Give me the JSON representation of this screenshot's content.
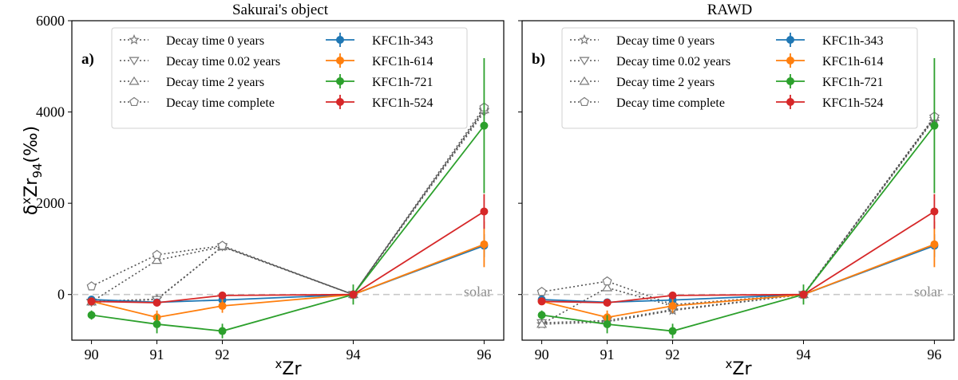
{
  "figure": {
    "ylabel_main": "δ",
    "ylabel_sup": "x",
    "ylabel_tail": "Zr",
    "ylabel_sub": "94",
    "ylabel_unit": "(‰)",
    "xlabel_sup": "x",
    "xlabel_main": "Zr",
    "solar_label": "solar"
  },
  "chart_data": [
    {
      "type": "line",
      "title": "Sakurai's object",
      "panel_label": "a)",
      "xlabel": "xZr",
      "ylabel": "δxZr94(‰)",
      "x": [
        90,
        91,
        92,
        94,
        96
      ],
      "xticks": [
        "90",
        "91",
        "92",
        "94",
        "96"
      ],
      "yticks": [
        "0",
        "2000",
        "4000",
        "6000"
      ],
      "ylim": [
        -1000,
        6000
      ],
      "reference_line": {
        "y": 0,
        "label": "solar"
      },
      "model_series": [
        {
          "name": "Decay time 0 years",
          "marker": "star",
          "values": [
            -150,
            -100,
            1050,
            0,
            4050
          ]
        },
        {
          "name": "Decay time 0.02 years",
          "marker": "triangle-down",
          "values": [
            -170,
            -110,
            1050,
            0,
            4000
          ]
        },
        {
          "name": "Decay time 2 years",
          "marker": "triangle-up",
          "values": [
            -160,
            750,
            1050,
            0,
            4050
          ]
        },
        {
          "name": "Decay time complete",
          "marker": "pentagon",
          "values": [
            180,
            870,
            1070,
            0,
            4100
          ]
        }
      ],
      "data_series": [
        {
          "name": "KFC1h-343",
          "color": "#1f77b4",
          "values": [
            -110,
            -170,
            -120,
            0,
            1070
          ],
          "errors": [
            40,
            40,
            40,
            20,
            250
          ]
        },
        {
          "name": "KFC1h-614",
          "color": "#ff7f0e",
          "values": [
            -150,
            -500,
            -250,
            0,
            1100
          ],
          "errors": [
            60,
            150,
            150,
            20,
            500
          ]
        },
        {
          "name": "KFC1h-721",
          "color": "#2ca02c",
          "values": [
            -450,
            -650,
            -800,
            0,
            3700
          ],
          "errors": [
            100,
            200,
            160,
            220,
            1480
          ]
        },
        {
          "name": "KFC1h-524",
          "color": "#d62728",
          "values": [
            -150,
            -180,
            -20,
            0,
            1820
          ],
          "errors": [
            40,
            40,
            40,
            20,
            380
          ]
        }
      ]
    },
    {
      "type": "line",
      "title": "RAWD",
      "panel_label": "b)",
      "xlabel": "xZr",
      "ylabel": "δxZr94(‰)",
      "x": [
        90,
        91,
        92,
        94,
        96
      ],
      "xticks": [
        "90",
        "91",
        "92",
        "94",
        "96"
      ],
      "yticks": [
        "0",
        "2000",
        "4000",
        "6000"
      ],
      "ylim": [
        -1000,
        6000
      ],
      "reference_line": {
        "y": 0,
        "label": "solar"
      },
      "model_series": [
        {
          "name": "Decay time 0 years",
          "marker": "star",
          "values": [
            -650,
            -600,
            -350,
            0,
            3850
          ]
        },
        {
          "name": "Decay time 0.02 years",
          "marker": "triangle-down",
          "values": [
            -620,
            -570,
            -330,
            0,
            3860
          ]
        },
        {
          "name": "Decay time 2 years",
          "marker": "triangle-up",
          "values": [
            -650,
            150,
            -250,
            0,
            3880
          ]
        },
        {
          "name": "Decay time complete",
          "marker": "pentagon",
          "values": [
            60,
            290,
            -220,
            0,
            3900
          ]
        }
      ],
      "data_series": [
        {
          "name": "KFC1h-343",
          "color": "#1f77b4",
          "values": [
            -110,
            -170,
            -120,
            0,
            1070
          ],
          "errors": [
            40,
            40,
            40,
            20,
            250
          ]
        },
        {
          "name": "KFC1h-614",
          "color": "#ff7f0e",
          "values": [
            -150,
            -500,
            -250,
            0,
            1100
          ],
          "errors": [
            60,
            150,
            150,
            20,
            500
          ]
        },
        {
          "name": "KFC1h-721",
          "color": "#2ca02c",
          "values": [
            -450,
            -650,
            -800,
            0,
            3700
          ],
          "errors": [
            100,
            200,
            160,
            220,
            1480
          ]
        },
        {
          "name": "KFC1h-524",
          "color": "#d62728",
          "values": [
            -150,
            -180,
            -20,
            0,
            1820
          ],
          "errors": [
            40,
            40,
            40,
            20,
            380
          ]
        }
      ]
    }
  ]
}
